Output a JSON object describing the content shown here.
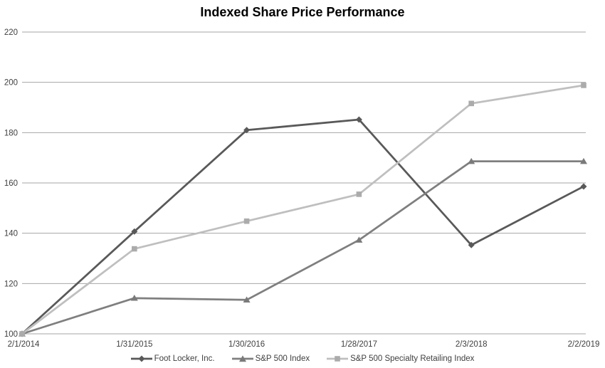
{
  "chart_data": {
    "type": "line",
    "title": "Indexed Share Price Performance",
    "x_labels": [
      "2/1/2014",
      "1/31/2015",
      "1/30/2016",
      "1/28/2017",
      "2/3/2018",
      "2/2/2019"
    ],
    "y_ticks": [
      100,
      120,
      140,
      160,
      180,
      200,
      220
    ],
    "ylim": [
      100,
      220
    ],
    "grid": "horizontal-only",
    "legend_position": "bottom-center",
    "gridline_color": "#a6a6a6",
    "axis_text_color": "#404040",
    "title_color": "#000000",
    "background_color": "#ffffff",
    "series": [
      {
        "name": "Foot Locker, Inc.",
        "marker": "diamond",
        "color": "#595959",
        "marker_color": "#595959",
        "values": [
          100,
          140.7,
          181.0,
          185.2,
          135.3,
          158.6
        ]
      },
      {
        "name": "S&P 500 Index",
        "marker": "triangle",
        "color": "#7f7f7f",
        "marker_color": "#7a7a7a",
        "values": [
          100,
          114.2,
          113.5,
          137.3,
          168.6,
          168.6
        ]
      },
      {
        "name": "S&P 500 Specialty Retailing Index",
        "marker": "square",
        "color": "#bfbfbf",
        "marker_color": "#ababab",
        "values": [
          100,
          133.8,
          144.8,
          155.5,
          191.6,
          198.8
        ]
      }
    ]
  }
}
